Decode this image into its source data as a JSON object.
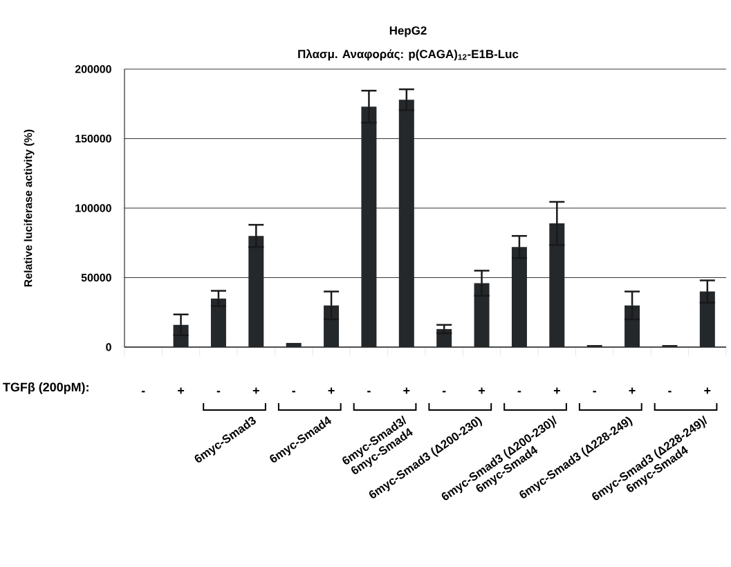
{
  "chart_data": {
    "type": "bar",
    "title": "HepG2",
    "subtitle": "Πλασμ. Αναφοράς: p(CAGA)$_{12}$-E1B-Luc",
    "ylabel": "Relative luciferase activity (%)",
    "xlabel": "TGFβ (200pM):",
    "categories": [
      "-",
      "+",
      "-",
      "+",
      "-",
      "+",
      "-",
      "+",
      "-",
      "+",
      "-",
      "+",
      "-",
      "+",
      "-",
      "+"
    ],
    "values": [
      0,
      16000,
      35000,
      80000,
      3000,
      30000,
      173000,
      178000,
      13000,
      46000,
      72000,
      89000,
      1500,
      30000,
      1500,
      40000
    ],
    "errors": [
      null,
      7500,
      5500,
      8000,
      null,
      10000,
      11500,
      7500,
      3000,
      9000,
      8000,
      15500,
      null,
      10000,
      null,
      8000
    ],
    "color": "#24282b",
    "ylim": [
      0,
      200000
    ],
    "yticks": [
      0,
      50000,
      100000,
      150000,
      200000
    ],
    "grid": "y",
    "annotations": [
      "6myc-Smad3",
      "6myc-Smad4",
      "6myc-Smad3/\n6myc-Smad4",
      "6myc-Smad3 (Δ200-230)",
      "6myc-Smad3 (Δ200-230)/\n6myc-Smad4",
      "6myc-Smad3 (Δ228-249)",
      "6myc-Smad3 (Δ228-249)/\n6myc-Smad4"
    ]
  }
}
